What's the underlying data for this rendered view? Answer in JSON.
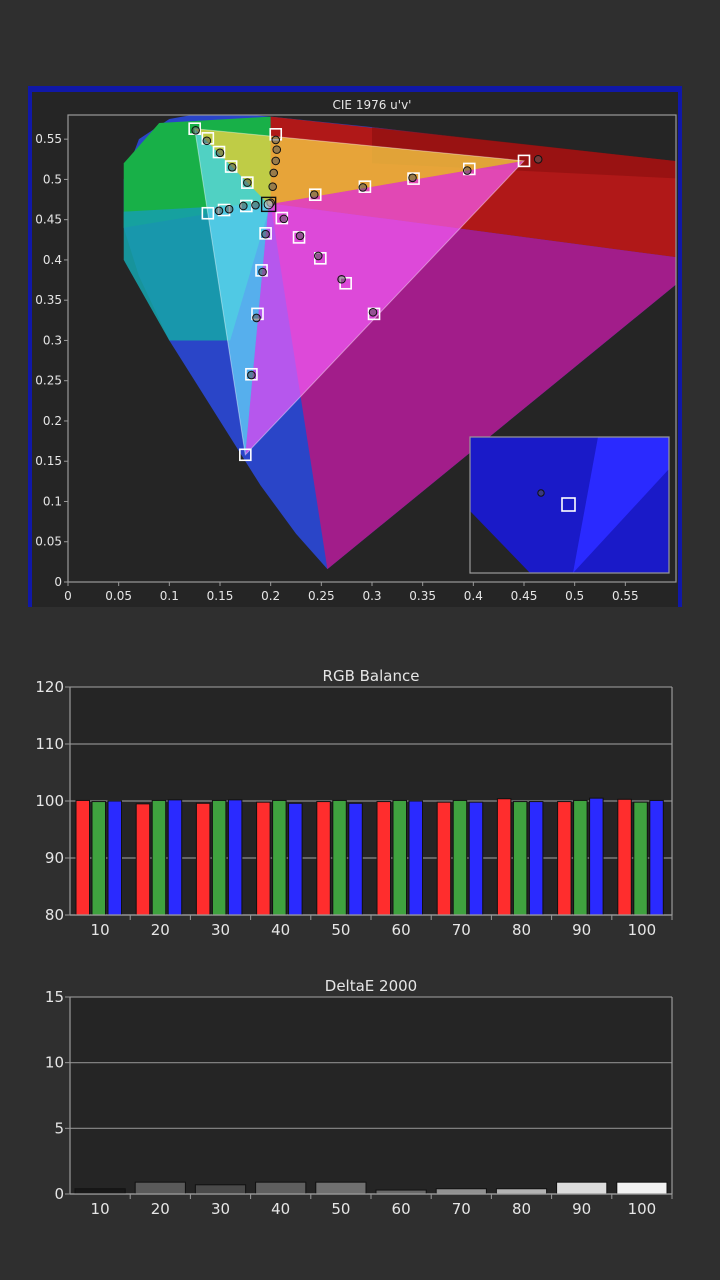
{
  "chart_data": [
    {
      "type": "scatter",
      "title": "CIE 1976 u'v'",
      "xlim": [
        0,
        0.6
      ],
      "ylim": [
        0,
        0.58
      ],
      "x_ticks": [
        "0",
        "0.05",
        "0.1",
        "0.15",
        "0.2",
        "0.25",
        "0.3",
        "0.35",
        "0.4",
        "0.45",
        "0.5",
        "0.55"
      ],
      "y_ticks": [
        "0",
        "0.05",
        "0.1",
        "0.15",
        "0.2",
        "0.25",
        "0.3",
        "0.35",
        "0.4",
        "0.45",
        "0.5",
        "0.55"
      ],
      "gamut_triangle": [
        [
          0.45,
          0.523
        ],
        [
          0.125,
          0.563
        ],
        [
          0.175,
          0.158
        ]
      ],
      "white_point": [
        0.198,
        0.469
      ],
      "series": [
        {
          "marker": "square",
          "points": [
            [
              0.45,
              0.523
            ],
            [
              0.396,
              0.513
            ],
            [
              0.341,
              0.501
            ],
            [
              0.293,
              0.491
            ],
            [
              0.244,
              0.481
            ],
            [
              0.125,
              0.563
            ],
            [
              0.138,
              0.551
            ],
            [
              0.149,
              0.534
            ],
            [
              0.161,
              0.516
            ],
            [
              0.177,
              0.496
            ],
            [
              0.205,
              0.556
            ],
            [
              0.175,
              0.158
            ],
            [
              0.181,
              0.258
            ],
            [
              0.187,
              0.333
            ],
            [
              0.191,
              0.387
            ],
            [
              0.195,
              0.433
            ],
            [
              0.138,
              0.458
            ],
            [
              0.154,
              0.462
            ],
            [
              0.176,
              0.467
            ],
            [
              0.302,
              0.333
            ],
            [
              0.274,
              0.371
            ],
            [
              0.249,
              0.402
            ],
            [
              0.228,
              0.428
            ],
            [
              0.211,
              0.452
            ]
          ]
        },
        {
          "marker": "circle",
          "points": [
            [
              0.464,
              0.525
            ],
            [
              0.394,
              0.511
            ],
            [
              0.34,
              0.502
            ],
            [
              0.291,
              0.49
            ],
            [
              0.243,
              0.481
            ],
            [
              0.126,
              0.561
            ],
            [
              0.137,
              0.548
            ],
            [
              0.15,
              0.533
            ],
            [
              0.162,
              0.515
            ],
            [
              0.177,
              0.496
            ],
            [
              0.205,
              0.549
            ],
            [
              0.206,
              0.537
            ],
            [
              0.205,
              0.523
            ],
            [
              0.203,
              0.508
            ],
            [
              0.202,
              0.491
            ],
            [
              0.181,
              0.257
            ],
            [
              0.186,
              0.328
            ],
            [
              0.192,
              0.385
            ],
            [
              0.195,
              0.432
            ],
            [
              0.149,
              0.461
            ],
            [
              0.159,
              0.463
            ],
            [
              0.173,
              0.467
            ],
            [
              0.185,
              0.468
            ],
            [
              0.2,
              0.471
            ],
            [
              0.301,
              0.335
            ],
            [
              0.27,
              0.376
            ],
            [
              0.247,
              0.405
            ],
            [
              0.229,
              0.43
            ],
            [
              0.213,
              0.451
            ]
          ]
        }
      ],
      "inset_points": {
        "square": [
          0.175,
          0.158
        ],
        "circle": [
          0.172,
          0.162
        ]
      }
    },
    {
      "type": "bar",
      "title": "RGB Balance",
      "categories": [
        "10",
        "20",
        "30",
        "40",
        "50",
        "60",
        "70",
        "80",
        "90",
        "100"
      ],
      "ylim": [
        80,
        120
      ],
      "y_ticks": [
        "80",
        "90",
        "100",
        "110",
        "120"
      ],
      "series": [
        {
          "color": "#ff2d2d",
          "values": [
            100.1,
            99.5,
            99.6,
            99.8,
            99.9,
            99.9,
            99.8,
            100.4,
            99.9,
            100.3
          ]
        },
        {
          "color": "#3fa23f",
          "values": [
            99.9,
            100.1,
            100.1,
            100.1,
            100.1,
            100.1,
            100.1,
            99.9,
            100.1,
            99.8
          ]
        },
        {
          "color": "#2a2aff",
          "values": [
            100.0,
            100.2,
            100.2,
            99.6,
            99.6,
            100.0,
            99.8,
            99.9,
            100.5,
            100.1
          ]
        }
      ]
    },
    {
      "type": "bar",
      "title": "DeltaE 2000",
      "categories": [
        "10",
        "20",
        "30",
        "40",
        "50",
        "60",
        "70",
        "80",
        "90",
        "100"
      ],
      "ylim": [
        0,
        15
      ],
      "y_ticks": [
        "0",
        "5",
        "10",
        "15"
      ],
      "values": [
        0.4,
        0.9,
        0.7,
        0.9,
        0.9,
        0.3,
        0.4,
        0.4,
        0.9,
        0.9
      ],
      "colors": [
        "#191919",
        "#5a5a5a",
        "#4a4a4a",
        "#5f5f5f",
        "#707070",
        "#6a6a6a",
        "#929292",
        "#b3b3b3",
        "#dcdcdc",
        "#f2f2f2"
      ]
    }
  ]
}
